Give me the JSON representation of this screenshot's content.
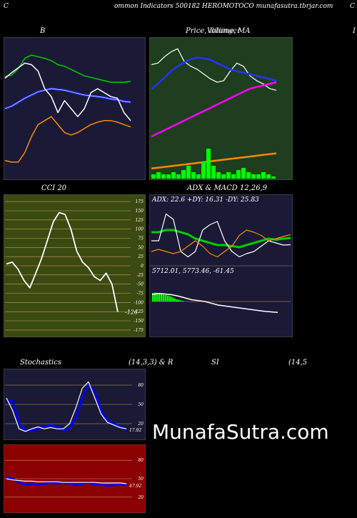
{
  "header": {
    "left": "C",
    "center": "ommon  Indicators 500182  HEROMOTOCO munafasutra.tbrjar.com",
    "right": "C"
  },
  "titles": {
    "bollinger": "B",
    "price_l1": "Price,",
    "price_l2": "Volume,",
    "price_overlap": "Billinger",
    "price_l3": "MA",
    "right_edge": "I",
    "cci": "CCI 20",
    "adx": "ADX  & MACD 12,26,9",
    "stoch_left": "Stochastics",
    "stoch_mid": "(14,3,3) & R",
    "rsi": "SI",
    "rsi_right": "(14,5"
  },
  "watermark": "MunafaSutra.com",
  "colors": {
    "navy_bg": "#1a1a36",
    "green_bg": "#1f3d1f",
    "olive_bg": "#3a4a10",
    "red_bg": "#8b0000",
    "stoch_line": "#0000ff"
  },
  "chart_data": [
    {
      "type": "line",
      "panel": "bollinger",
      "title": "B",
      "series": [
        {
          "color": "#00cc00",
          "values": [
            35,
            37,
            45,
            58,
            62,
            60,
            58,
            55,
            50,
            48,
            44,
            40,
            36,
            34,
            32,
            30,
            28,
            28,
            28,
            29
          ]
        },
        {
          "color": "#2233ff",
          "values": [
            -5,
            -2,
            3,
            8,
            12,
            16,
            18,
            20,
            19,
            18,
            16,
            14,
            12,
            11,
            10,
            9,
            7,
            6,
            4,
            3
          ]
        },
        {
          "color": "#ffffff",
          "values": [
            33,
            40,
            46,
            52,
            50,
            42,
            20,
            10,
            -10,
            5,
            -5,
            -15,
            -5,
            15,
            20,
            15,
            10,
            8,
            -10,
            -20
          ]
        },
        {
          "color": "#ff8800",
          "values": [
            -70,
            -72,
            -72,
            -60,
            -40,
            -25,
            -20,
            -15,
            -25,
            -35,
            -38,
            -35,
            -30,
            -25,
            -22,
            -20,
            -20,
            -22,
            -25,
            -28
          ]
        }
      ]
    },
    {
      "type": "line",
      "panel": "price",
      "series": [
        {
          "color": "#ffffff",
          "values": [
            10,
            12,
            20,
            26,
            30,
            14,
            8,
            4,
            -2,
            -8,
            -12,
            -10,
            2,
            12,
            8,
            -4,
            -10,
            -14,
            -20,
            -22
          ]
        },
        {
          "color": "#2233ff",
          "values": [
            -20,
            -14,
            -6,
            2,
            8,
            13,
            17,
            19,
            18,
            16,
            12,
            8,
            4,
            2,
            0,
            -2,
            -4,
            -6,
            -8,
            -10
          ]
        },
        {
          "color": "#ff00ff",
          "values": [
            -80,
            -76,
            -72,
            -68,
            -64,
            -60,
            -56,
            -52,
            -48,
            -44,
            -40,
            -36,
            -32,
            -28,
            -24,
            -20,
            -18,
            -16,
            -14,
            -12
          ]
        },
        {
          "color": "#ff8800",
          "values": [
            -120,
            -119,
            -118,
            -117,
            -116,
            -115,
            -114,
            -113,
            -112,
            -111,
            -110,
            -109,
            -108,
            -107,
            -106,
            -105,
            -104,
            -103,
            -102,
            -101
          ]
        }
      ],
      "volume": [
        2,
        3,
        2,
        2,
        3,
        2,
        4,
        6,
        3,
        2,
        8,
        14,
        6,
        3,
        2,
        3,
        2,
        4,
        5,
        3,
        2,
        2,
        3,
        2,
        1
      ]
    },
    {
      "type": "line",
      "panel": "cci",
      "title": "CCI 20",
      "y_ticks": [
        175,
        150,
        125,
        100,
        75,
        50,
        25,
        0,
        -25,
        -50,
        -75,
        -100,
        -125,
        -150,
        -175
      ],
      "ylim": [
        -185,
        185
      ],
      "values": [
        5,
        10,
        -10,
        -40,
        -60,
        -20,
        20,
        70,
        120,
        145,
        140,
        100,
        40,
        10,
        -5,
        -30,
        -40,
        -20,
        -50,
        -126
      ],
      "last_label": "-126"
    },
    {
      "type": "line",
      "panel": "adx",
      "readout": "ADX: 22.6  +DY: 16.31 -DY: 25.83",
      "series": [
        {
          "name": "ADX",
          "color": "#00cc00",
          "values": [
            28,
            28,
            30,
            30,
            28,
            26,
            22,
            20,
            18,
            16,
            16,
            15,
            14,
            16,
            18,
            20,
            22,
            21,
            22,
            22.6
          ]
        },
        {
          "color": "#ffffff",
          "values": [
            20,
            20,
            45,
            40,
            10,
            5,
            10,
            30,
            35,
            38,
            20,
            10,
            5,
            8,
            10,
            15,
            20,
            18,
            16,
            16.31
          ]
        },
        {
          "color": "#ff8800",
          "values": [
            10,
            12,
            10,
            8,
            10,
            15,
            20,
            15,
            8,
            5,
            10,
            15,
            25,
            30,
            28,
            25,
            20,
            22,
            24,
            25.83
          ]
        }
      ]
    },
    {
      "type": "line",
      "panel": "macd",
      "readout": "5712.01,  5773.46,  -61.45",
      "series": [
        {
          "color": "#ffffff",
          "values": [
            40,
            45,
            42,
            38,
            30,
            20,
            10,
            5,
            0,
            -10,
            -20,
            -25,
            -30,
            -35,
            -40,
            -45,
            -50,
            -55,
            -58,
            -61
          ]
        }
      ],
      "histogram": [
        40,
        42,
        40,
        38,
        36,
        32,
        30,
        28,
        25,
        20,
        15,
        10,
        8,
        5,
        3
      ]
    },
    {
      "type": "line",
      "panel": "stochastics",
      "title": "Stochastics",
      "y_ticks": [
        80,
        50,
        20
      ],
      "ylim": [
        0,
        100
      ],
      "series": [
        {
          "color": "#0000ff",
          "values": [
            55,
            55,
            20,
            10,
            10,
            12,
            15,
            18,
            15,
            10,
            12,
            30,
            60,
            80,
            70,
            40,
            25,
            20,
            15,
            10
          ]
        },
        {
          "color": "#ffffff",
          "values": [
            60,
            40,
            12,
            8,
            12,
            15,
            12,
            14,
            12,
            12,
            20,
            45,
            75,
            85,
            60,
            35,
            22,
            18,
            14,
            12
          ]
        }
      ],
      "last_label": "17.92"
    },
    {
      "type": "line",
      "panel": "rsi",
      "title": "SI",
      "y_ticks": [
        80,
        50,
        20
      ],
      "ylim": [
        0,
        100
      ],
      "series": [
        {
          "color": "#0000ff",
          "values": [
            52,
            50,
            44,
            40,
            42,
            40,
            42,
            44,
            42,
            44,
            42,
            40,
            42,
            44,
            40,
            42,
            38,
            40,
            42,
            38
          ]
        },
        {
          "color": "#ffffff",
          "values": [
            50,
            48,
            47,
            46,
            46,
            45,
            45,
            45,
            45,
            44,
            44,
            44,
            44,
            44,
            44,
            43,
            43,
            43,
            43,
            42
          ]
        }
      ],
      "last_label": "47.92"
    }
  ]
}
